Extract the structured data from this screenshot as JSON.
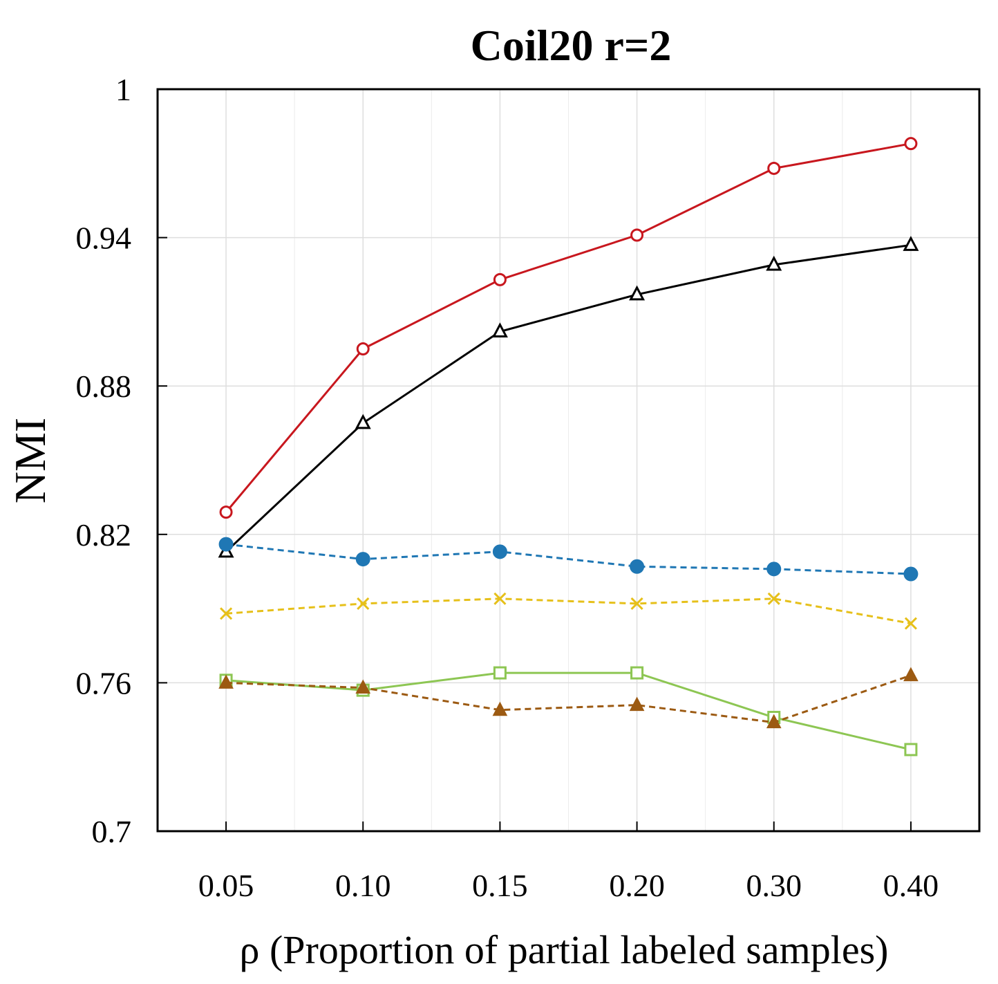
{
  "chart_data": {
    "type": "line",
    "title": "Coil20 r=2",
    "xlabel": "ρ (Proportion of partial labeled samples)",
    "ylabel": "NMI",
    "categories": [
      "0.05",
      "0.10",
      "0.15",
      "0.20",
      "0.30",
      "0.40"
    ],
    "yticks": [
      "0.7",
      "0.76",
      "0.82",
      "0.88",
      "0.94",
      "1"
    ],
    "ylim": [
      0.7,
      1.0
    ],
    "grid": true,
    "series": [
      {
        "color": "#c8171e",
        "dash": false,
        "marker": "circle-open",
        "values": [
          0.829,
          0.895,
          0.923,
          0.941,
          0.968,
          0.978
        ]
      },
      {
        "color": "#000000",
        "dash": false,
        "marker": "triangle-open",
        "values": [
          0.813,
          0.865,
          0.902,
          0.917,
          0.929,
          0.937
        ]
      },
      {
        "color": "#1f77b4",
        "dash": true,
        "marker": "circle-filled",
        "values": [
          0.816,
          0.81,
          0.813,
          0.807,
          0.806,
          0.804
        ]
      },
      {
        "color": "#e6c01a",
        "dash": true,
        "marker": "x",
        "values": [
          0.788,
          0.792,
          0.794,
          0.792,
          0.794,
          0.784
        ]
      },
      {
        "color": "#8dc653",
        "dash": false,
        "marker": "square-open",
        "values": [
          0.761,
          0.757,
          0.764,
          0.764,
          0.746,
          0.733
        ]
      },
      {
        "color": "#9c5a12",
        "dash": true,
        "marker": "triangle-filled",
        "values": [
          0.76,
          0.758,
          0.749,
          0.751,
          0.744,
          0.763
        ]
      }
    ]
  }
}
